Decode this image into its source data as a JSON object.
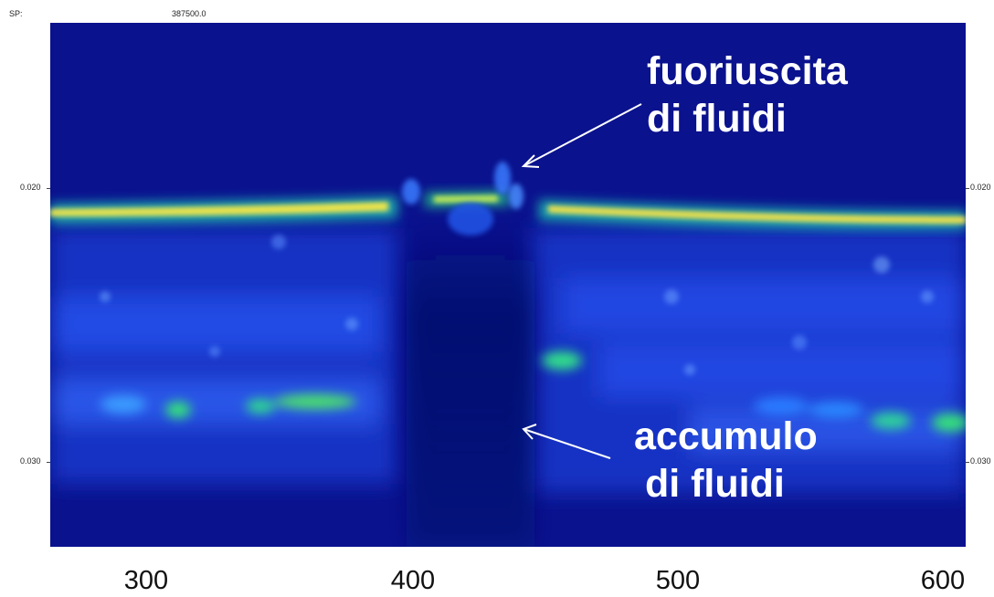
{
  "header": {
    "sp_label": "SP:",
    "sp_value": "387500.0"
  },
  "y_axis": {
    "ticks": [
      "0.020",
      "0.030"
    ]
  },
  "x_axis": {
    "ticks": [
      "300",
      "400",
      "500",
      "600"
    ]
  },
  "annotations": {
    "top": "fuoriuscita\ndi fluidi",
    "bottom": "accumulo\n di fluidi"
  },
  "colors": {
    "background": "#0a128e",
    "reflector_core": "#f5e63c",
    "reflector_edge": "#24d07a",
    "scatter": "#2d6bff",
    "annotation": "#ffffff"
  }
}
